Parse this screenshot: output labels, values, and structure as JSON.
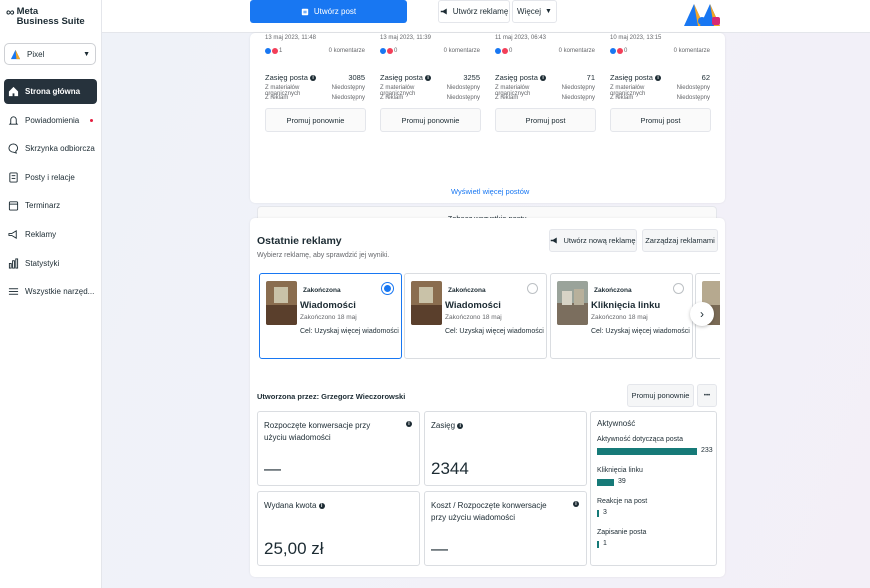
{
  "brand": {
    "logo_inf": "∞",
    "line1": "Meta",
    "line2": "Business Suite"
  },
  "account": {
    "name": "Pixel"
  },
  "nav": [
    {
      "label": "Strona główna",
      "icon": "home-icon",
      "active": true
    },
    {
      "label": "Powiadomienia",
      "icon": "bell-icon",
      "dot": true
    },
    {
      "label": "Skrzynka odbiorcza",
      "icon": "inbox-icon"
    },
    {
      "label": "Posty i relacje",
      "icon": "posts-icon"
    },
    {
      "label": "Terminarz",
      "icon": "calendar-icon"
    },
    {
      "label": "Reklamy",
      "icon": "megaphone-icon"
    },
    {
      "label": "Statystyki",
      "icon": "chart-icon"
    },
    {
      "label": "Wszystkie narzęd...",
      "icon": "menu-icon"
    }
  ],
  "topbar": {
    "create_post": "Utwórz post",
    "create_ad": "Utwórz reklamę",
    "more": "Więcej"
  },
  "posts": [
    {
      "date": "13 maj 2023, 11:48",
      "reactions": "1",
      "comments": "0 komentarze",
      "reach_label": "Zasięg posta",
      "reach": "3085",
      "organic_label": "Z materiałów organicznych",
      "organic": "Niedostępny",
      "ads_label": "Z reklam",
      "ads": "Niedostępny",
      "button": "Promuj ponownie"
    },
    {
      "date": "13 maj 2023, 11:39",
      "reactions": "0",
      "comments": "0 komentarze",
      "reach_label": "Zasięg posta",
      "reach": "3255",
      "organic_label": "Z materiałów organicznych",
      "organic": "Niedostępny",
      "ads_label": "Z reklam",
      "ads": "Niedostępny",
      "button": "Promuj ponownie"
    },
    {
      "date": "11 maj 2023, 06:43",
      "reactions": "0",
      "comments": "0 komentarze",
      "reach_label": "Zasięg posta",
      "reach": "71",
      "organic_label": "Z materiałów organicznych",
      "organic": "Niedostępny",
      "ads_label": "Z reklam",
      "ads": "Niedostępny",
      "button": "Promuj post"
    },
    {
      "date": "10 maj 2023, 13:15",
      "reactions": "0",
      "comments": "0 komentarze",
      "reach_label": "Zasięg posta",
      "reach": "62",
      "organic_label": "Z materiałów organicznych",
      "organic": "Niedostępny",
      "ads_label": "Z reklam",
      "ads": "Niedostępny",
      "button": "Promuj post"
    }
  ],
  "posts_footer": {
    "more_posts": "Wyświetl więcej postów",
    "all_posts": "Zobacz wszystkie posty"
  },
  "ads": {
    "title": "Ostatnie reklamy",
    "subtitle": "Wybierz reklamę, aby sprawdzić jej wyniki.",
    "create_btn": "Utwórz nową reklamę",
    "manage_btn": "Zarządzaj reklamami",
    "items": [
      {
        "status": "Zakończona",
        "name": "Wiadomości",
        "ended": "Zakończono 18 maj",
        "goal": "Cel: Uzyskaj więcej wiadomości",
        "selected": true
      },
      {
        "status": "Zakończona",
        "name": "Wiadomości",
        "ended": "Zakończono 18 maj",
        "goal": "Cel: Uzyskaj więcej wiadomości",
        "selected": false
      },
      {
        "status": "Zakończona",
        "name": "Kliknięcia linku",
        "ended": "Zakończono 18 maj",
        "goal": "Cel: Uzyskaj więcej wiadomości",
        "selected": false
      }
    ],
    "created_by": "Utworzona przez: Grzegorz Wieczorowski",
    "promote_again": "Promuj ponownie",
    "more_dots": "•••",
    "metrics": {
      "conv_label": "Rozpoczęte konwersacje przy użyciu wiadomości",
      "conv_value": "—",
      "reach_label": "Zasięg",
      "reach_value": "2344",
      "spent_label": "Wydana kwota",
      "spent_value": "25,00 zł",
      "cost_label": "Koszt / Rozpoczęte konwersacje przy użyciu wiadomości",
      "cost_value": "—"
    },
    "activity": {
      "title": "Aktywność",
      "items": [
        {
          "label": "Aktywność dotycząca posta",
          "value": "233",
          "fraction": 1.0
        },
        {
          "label": "Kliknięcia linku",
          "value": "39",
          "fraction": 0.17
        },
        {
          "label": "Reakcje na post",
          "value": "3",
          "fraction": 0.013
        },
        {
          "label": "Zapisanie posta",
          "value": "1",
          "fraction": 0.005
        }
      ]
    }
  },
  "colors": {
    "primary": "#1877f2",
    "active_nav": "#26323c",
    "bar": "#167a78",
    "notif_dot": "#e41e3f"
  }
}
